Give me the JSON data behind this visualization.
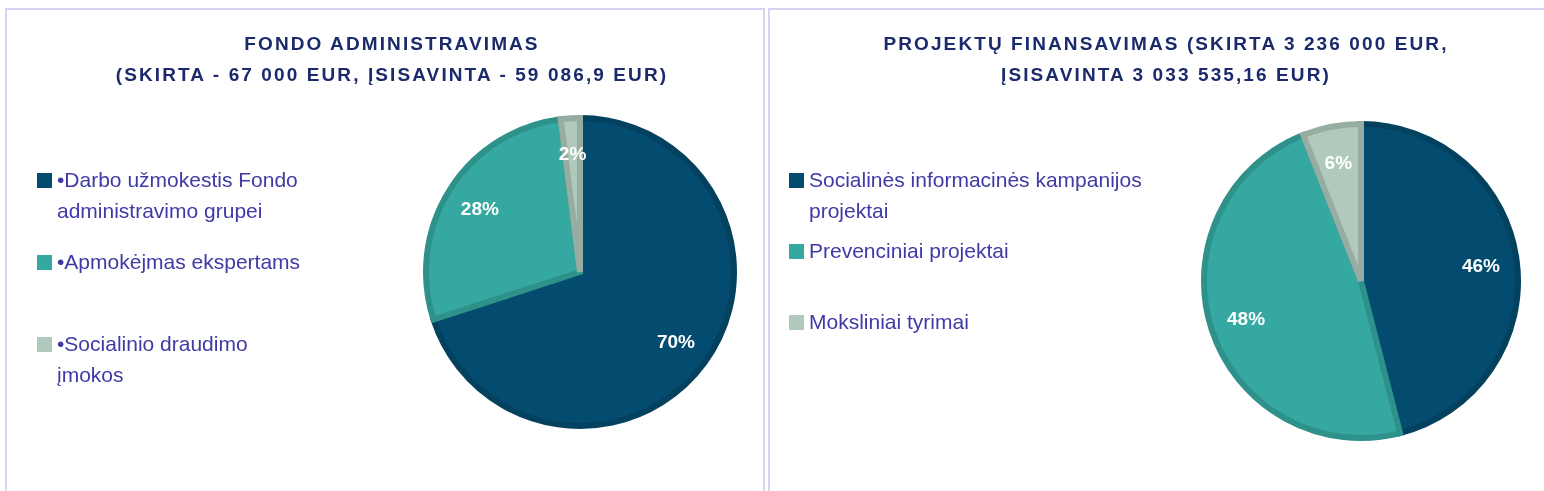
{
  "chart_data": [
    {
      "type": "pie",
      "title": "FONDO ADMINISTRAVIMAS\n(SKIRTA - 67 000 EUR, ĮSISAVINTA - 59 086,9 EUR)",
      "categories": [
        "•Darbo užmokestis Fondo administravimo grupei",
        "•Apmokėjmas ekspertams",
        "•Socialinio draudimo įmokos"
      ],
      "values": [
        70,
        28,
        2
      ],
      "value_labels": [
        "70%",
        "28%",
        "2%"
      ],
      "colors": [
        "#044c6f",
        "#35a9a1",
        "#b1c9bc"
      ],
      "legend": "left"
    },
    {
      "type": "pie",
      "title": "PROJEKTŲ FINANSAVIMAS (SKIRTA 3 236 000 EUR,\nĮSISAVINTA 3 033 535,16 EUR)",
      "categories": [
        "Socialinės informacinės kampanijos projektai",
        "Prevenciniai projektai",
        "Moksliniai tyrimai"
      ],
      "values": [
        46,
        48,
        6
      ],
      "value_labels": [
        "46%",
        "48%",
        "6%"
      ],
      "colors": [
        "#044c6f",
        "#35a9a1",
        "#b1c9bc"
      ],
      "legend": "left"
    }
  ]
}
